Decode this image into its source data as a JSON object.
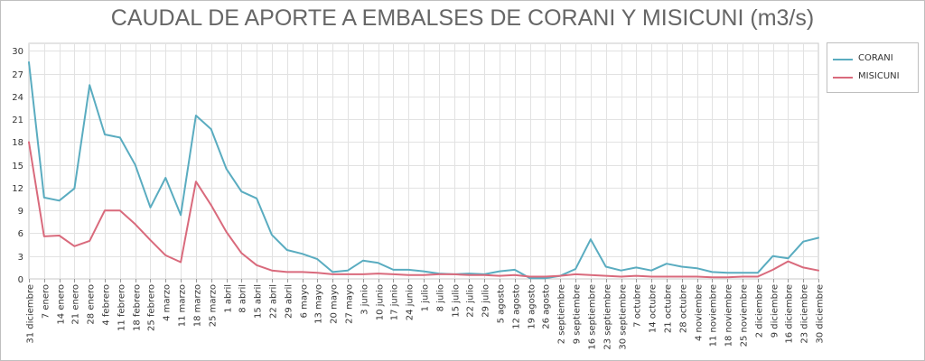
{
  "chart_data": {
    "type": "line",
    "title": "CAUDAL DE APORTE A EMBALSES DE CORANI Y MISICUNI (m3/s)",
    "xlabel": "",
    "ylabel": "",
    "ylim": [
      0,
      31
    ],
    "yticks": [
      0,
      3,
      6,
      9,
      12,
      15,
      18,
      21,
      24,
      27,
      30
    ],
    "grid": true,
    "legend": "right",
    "categories": [
      "31 diciembre",
      "7 enero",
      "14 enero",
      "21 enero",
      "28 enero",
      "4 febrero",
      "11 febrero",
      "18 febrero",
      "25 febrero",
      "4 marzo",
      "11 marzo",
      "18 marzo",
      "25 marzo",
      "1 abril",
      "8 abril",
      "15 abril",
      "22 abril",
      "29 abril",
      "6 mayo",
      "13 mayo",
      "20 mayo",
      "27 mayo",
      "3 junio",
      "10 junio",
      "17 junio",
      "24 junio",
      "1 julio",
      "8 julio",
      "15 julio",
      "22 julio",
      "29 julio",
      "5 agosto",
      "12 agosto",
      "19 agosto",
      "26 agosto",
      "2 septiembre",
      "9 septiembre",
      "16 septiembre",
      "23 septiembre",
      "30 septiembre",
      "7 octubre",
      "14 octubre",
      "21 octubre",
      "28 octubre",
      "4 noviembre",
      "11 noviembre",
      "18 noviembre",
      "25 noviembre",
      "2 diciembre",
      "9 diciembre",
      "16 diciembre",
      "23 diciembre",
      "30 diciembre"
    ],
    "series": [
      {
        "name": "CORANI",
        "color": "#5aacc0",
        "values": [
          28.5,
          10.7,
          10.3,
          11.9,
          25.5,
          19.0,
          18.6,
          15.0,
          9.4,
          13.3,
          8.4,
          21.5,
          19.7,
          14.5,
          11.5,
          10.6,
          5.8,
          3.8,
          3.3,
          2.6,
          0.9,
          1.1,
          2.4,
          2.1,
          1.2,
          1.2,
          1.0,
          0.7,
          0.6,
          0.7,
          0.6,
          1.0,
          1.2,
          0.1,
          0.1,
          0.4,
          1.3,
          5.2,
          1.6,
          1.1,
          1.5,
          1.1,
          2.0,
          1.6,
          1.4,
          0.9,
          0.8,
          0.8,
          0.8,
          3.0,
          2.7,
          4.9,
          5.4
        ]
      },
      {
        "name": "MISICUNI",
        "color": "#d96a7c",
        "values": [
          18.0,
          5.6,
          5.7,
          4.3,
          5.0,
          9.0,
          9.0,
          7.2,
          5.1,
          3.1,
          2.2,
          12.8,
          9.7,
          6.2,
          3.4,
          1.8,
          1.1,
          0.9,
          0.9,
          0.8,
          0.6,
          0.6,
          0.6,
          0.7,
          0.6,
          0.5,
          0.5,
          0.6,
          0.6,
          0.5,
          0.5,
          0.4,
          0.5,
          0.3,
          0.3,
          0.4,
          0.6,
          0.5,
          0.4,
          0.3,
          0.4,
          0.3,
          0.3,
          0.3,
          0.3,
          0.2,
          0.2,
          0.3,
          0.3,
          1.2,
          2.3,
          1.5,
          1.1
        ]
      }
    ]
  }
}
